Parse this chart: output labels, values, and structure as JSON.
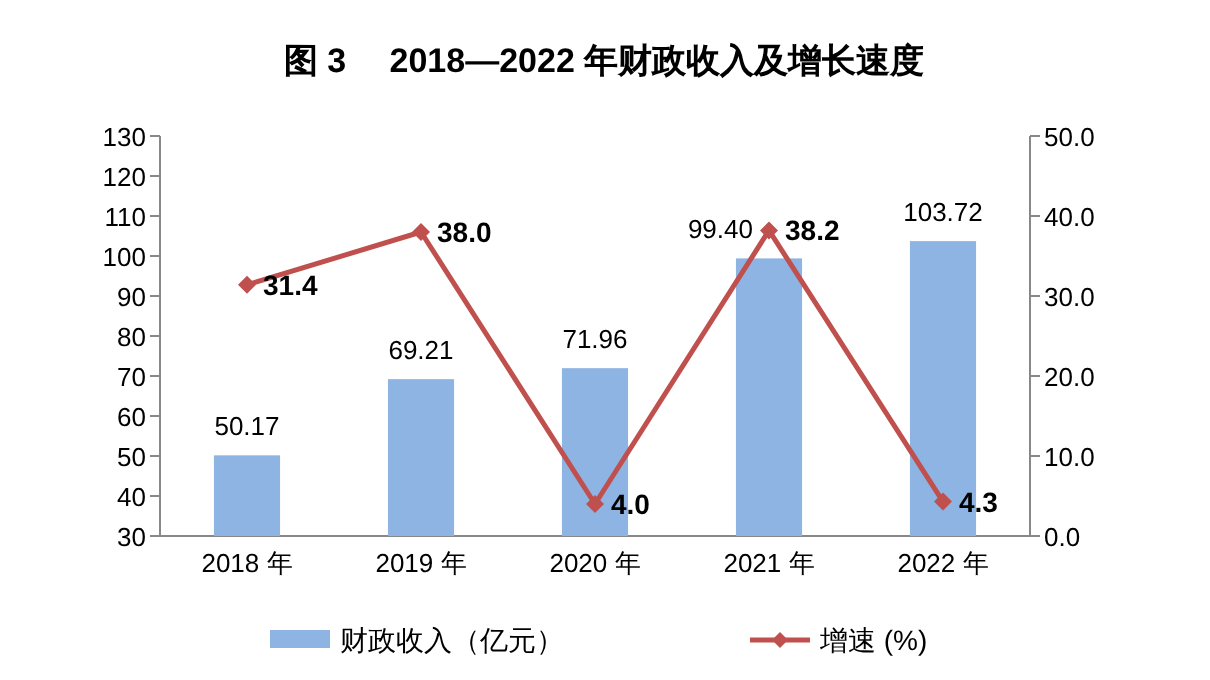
{
  "chart_data": {
    "type": "bar",
    "title": "图 3　 2018—2022 年财政收入及增长速度",
    "categories": [
      "2018 年",
      "2019 年",
      "2020 年",
      "2021 年",
      "2022 年"
    ],
    "series": [
      {
        "name": "财政收入（亿元）",
        "color": "#8eb4e3",
        "values": [
          50.17,
          69.21,
          71.96,
          99.4,
          103.72
        ],
        "value_labels": [
          "50.17",
          "69.21",
          "71.96",
          "99.40",
          "103.72"
        ]
      },
      {
        "name": "增速 (%)",
        "type": "line",
        "axis": "y2",
        "color": "#c0504d",
        "marker": "diamond",
        "values": [
          31.4,
          38.0,
          4.0,
          38.2,
          4.3
        ],
        "value_labels": [
          "31.4",
          "38.0",
          "4.0",
          "38.2",
          "4.3"
        ]
      }
    ],
    "ylim": [
      30,
      130
    ],
    "yticks": [
      30,
      40,
      50,
      60,
      70,
      80,
      90,
      100,
      110,
      120,
      130
    ],
    "y2lim": [
      0,
      50
    ],
    "y2ticks": [
      {
        "value": 0,
        "label": "0.0"
      },
      {
        "value": 10,
        "label": "10.0"
      },
      {
        "value": 20,
        "label": "20.0"
      },
      {
        "value": 30,
        "label": "30.0"
      },
      {
        "value": 40,
        "label": "40.0"
      },
      {
        "value": 50,
        "label": "50.0"
      }
    ],
    "grid": false,
    "legend": "bottom"
  }
}
